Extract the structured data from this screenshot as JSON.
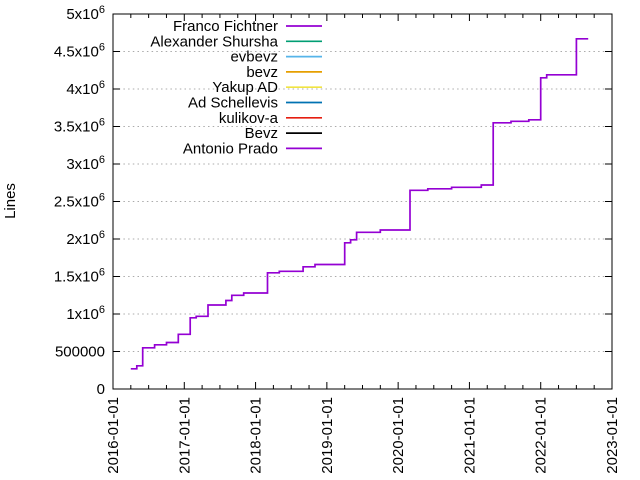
{
  "page": {
    "background": "#ffffff"
  },
  "chart_data": {
    "type": "line",
    "line_style": "steps",
    "title": "",
    "xlabel": "",
    "ylabel": "Lines",
    "x_axis": {
      "tick_labels": [
        "2016-01-01",
        "2017-01-01",
        "2018-01-01",
        "2019-01-01",
        "2020-01-01",
        "2021-01-01",
        "2022-01-01",
        "2023-01-01"
      ],
      "minor_tick_interval_months": 3,
      "label_rotation_deg": -90
    },
    "y_axis": {
      "min": 0,
      "max": 5000000,
      "tick_values": [
        0,
        500000,
        1000000,
        1500000,
        2000000,
        2500000,
        3000000,
        3500000,
        4000000,
        4500000,
        5000000
      ],
      "tick_labels": [
        "0",
        "500000",
        "1x10^6",
        "1.5x10^6",
        "2x10^6",
        "2.5x10^6",
        "3x10^6",
        "3.5x10^6",
        "4x10^6",
        "4.5x10^6",
        "5x10^6"
      ]
    },
    "grid": {
      "horizontal": true,
      "vertical": false,
      "style": "dotted",
      "color": "#ababab"
    },
    "border_color": "#000000",
    "legend": {
      "position": "top-left-inside",
      "entries": [
        {
          "label": "Franco Fichtner",
          "color": "#9400d3"
        },
        {
          "label": "Alexander Shursha",
          "color": "#009e73"
        },
        {
          "label": "evbevz",
          "color": "#56b4e9"
        },
        {
          "label": "bevz",
          "color": "#e69f00"
        },
        {
          "label": "Yakup AD",
          "color": "#f0e442"
        },
        {
          "label": "Ad Schellevis",
          "color": "#0072b2"
        },
        {
          "label": "kulikov-a",
          "color": "#e51e10"
        },
        {
          "label": "Bevz",
          "color": "#000000"
        },
        {
          "label": "Antonio Prado",
          "color": "#9400d3"
        }
      ]
    },
    "series": [
      {
        "name": "cumulative-lines-step-curve",
        "color": "#9400d3",
        "points": [
          [
            "2016-04",
            270000
          ],
          [
            "2016-05",
            310000
          ],
          [
            "2016-06",
            550000
          ],
          [
            "2016-08",
            590000
          ],
          [
            "2016-10",
            620000
          ],
          [
            "2016-12",
            730000
          ],
          [
            "2017-02",
            950000
          ],
          [
            "2017-03",
            970000
          ],
          [
            "2017-05",
            1120000
          ],
          [
            "2017-08",
            1180000
          ],
          [
            "2017-09",
            1250000
          ],
          [
            "2017-11",
            1280000
          ],
          [
            "2018-03",
            1550000
          ],
          [
            "2018-05",
            1570000
          ],
          [
            "2018-09",
            1630000
          ],
          [
            "2018-11",
            1660000
          ],
          [
            "2019-04",
            1950000
          ],
          [
            "2019-05",
            1990000
          ],
          [
            "2019-06",
            2090000
          ],
          [
            "2019-10",
            2120000
          ],
          [
            "2020-03",
            2650000
          ],
          [
            "2020-06",
            2670000
          ],
          [
            "2020-10",
            2690000
          ],
          [
            "2021-03",
            2720000
          ],
          [
            "2021-05",
            3550000
          ],
          [
            "2021-08",
            3570000
          ],
          [
            "2021-11",
            3590000
          ],
          [
            "2022-01",
            4150000
          ],
          [
            "2022-02",
            4190000
          ],
          [
            "2022-07",
            4670000
          ],
          [
            "2022-09",
            4670000
          ]
        ]
      }
    ]
  }
}
